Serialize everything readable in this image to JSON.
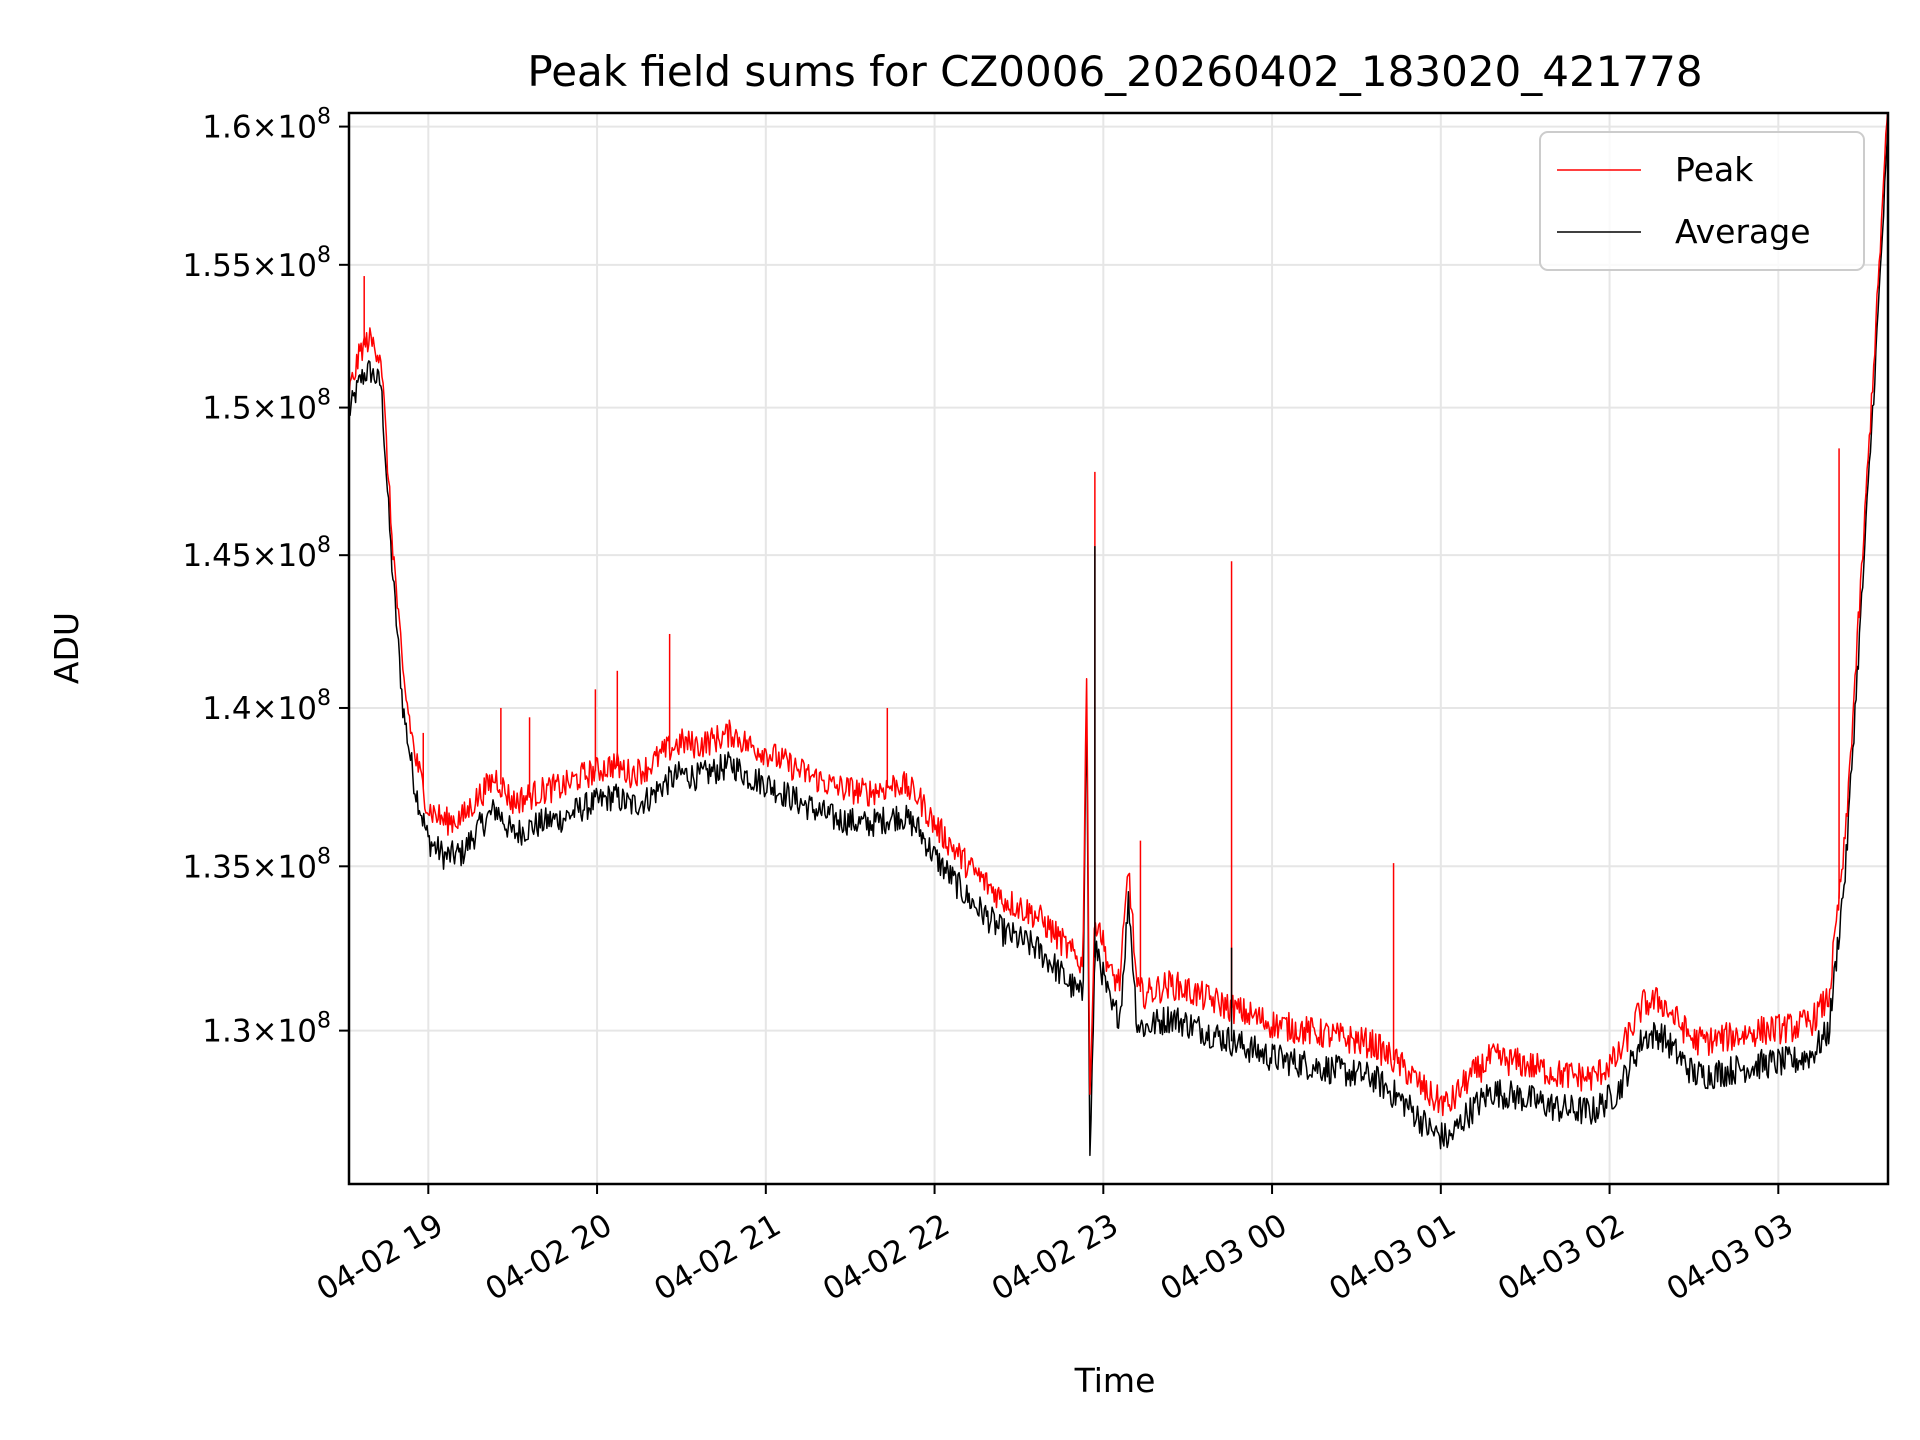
{
  "chart_data": {
    "type": "line",
    "title": "Peak field sums for CZ0006_20260402_183020_421778",
    "xlabel": "Time",
    "ylabel": "ADU",
    "x_range_hours": [
      18.53,
      27.65
    ],
    "ylim": [
      125500000,
      160500000
    ],
    "y_scale": "log",
    "grid": true,
    "legend_position": "top-right",
    "x_ticks": [
      {
        "hour": 19,
        "label": "04-02 19"
      },
      {
        "hour": 20,
        "label": "04-02 20"
      },
      {
        "hour": 21,
        "label": "04-02 21"
      },
      {
        "hour": 22,
        "label": "04-02 22"
      },
      {
        "hour": 23,
        "label": "04-02 23"
      },
      {
        "hour": 24,
        "label": "04-03 00"
      },
      {
        "hour": 25,
        "label": "04-03 01"
      },
      {
        "hour": 26,
        "label": "04-03 02"
      },
      {
        "hour": 27,
        "label": "04-03 03"
      }
    ],
    "y_ticks": [
      {
        "value": 130000000,
        "mantissa": "1.3",
        "exponent": "8"
      },
      {
        "value": 135000000,
        "mantissa": "1.35",
        "exponent": "8"
      },
      {
        "value": 140000000,
        "mantissa": "1.4",
        "exponent": "8"
      },
      {
        "value": 145000000,
        "mantissa": "1.45",
        "exponent": "8"
      },
      {
        "value": 150000000,
        "mantissa": "1.5",
        "exponent": "8"
      },
      {
        "value": 155000000,
        "mantissa": "1.55",
        "exponent": "8"
      },
      {
        "value": 160000000,
        "mantissa": "1.6",
        "exponent": "8"
      }
    ],
    "series": [
      {
        "name": "Peak",
        "color": "#ff0000",
        "x": [
          18.53,
          18.6,
          18.65,
          18.72,
          18.78,
          18.85,
          18.92,
          19.0,
          19.1,
          19.2,
          19.3,
          19.4,
          19.5,
          19.6,
          19.7,
          19.8,
          19.9,
          20.0,
          20.1,
          20.2,
          20.3,
          20.4,
          20.5,
          20.6,
          20.7,
          20.8,
          20.9,
          21.0,
          21.2,
          21.4,
          21.6,
          21.8,
          21.9,
          22.0,
          22.2,
          22.4,
          22.6,
          22.7,
          22.8,
          22.88,
          22.9,
          22.92,
          22.95,
          22.97,
          23.0,
          23.05,
          23.1,
          23.15,
          23.2,
          23.25,
          23.3,
          23.4,
          23.6,
          23.8,
          24.0,
          24.2,
          24.4,
          24.6,
          24.8,
          24.95,
          25.05,
          25.15,
          25.3,
          25.5,
          25.7,
          25.9,
          26.05,
          26.2,
          26.3,
          26.4,
          26.5,
          26.6,
          26.7,
          26.9,
          27.1,
          27.2,
          27.3,
          27.4,
          27.5,
          27.58,
          27.65
        ],
        "y": [
          150500000,
          152000000,
          152400000,
          151800000,
          146000000,
          141000000,
          138500000,
          136800000,
          136400000,
          136500000,
          137200000,
          137800000,
          137000000,
          137200000,
          137400000,
          137500000,
          137800000,
          138000000,
          138200000,
          137900000,
          138100000,
          138600000,
          138900000,
          138800000,
          139000000,
          139200000,
          138800000,
          138600000,
          138000000,
          137500000,
          137300000,
          137600000,
          137200000,
          136300000,
          135000000,
          134000000,
          133500000,
          133000000,
          132400000,
          132000000,
          141800000,
          128000000,
          133200000,
          133400000,
          132600000,
          131600000,
          131500000,
          135000000,
          131200000,
          131100000,
          131200000,
          131400000,
          131000000,
          130600000,
          130200000,
          130000000,
          129800000,
          129600000,
          128800000,
          128000000,
          127800000,
          128500000,
          129200000,
          129000000,
          128700000,
          128600000,
          129200000,
          130800000,
          130900000,
          130300000,
          129700000,
          129700000,
          129800000,
          130000000,
          130100000,
          130300000,
          131000000,
          136000000,
          145000000,
          153000000,
          160800000
        ]
      },
      {
        "name": "Average",
        "color": "#000000",
        "x": [
          18.53,
          18.6,
          18.65,
          18.72,
          18.78,
          18.85,
          18.92,
          19.0,
          19.1,
          19.2,
          19.3,
          19.4,
          19.5,
          19.6,
          19.7,
          19.8,
          19.9,
          20.0,
          20.1,
          20.2,
          20.3,
          20.4,
          20.5,
          20.6,
          20.7,
          20.8,
          20.9,
          21.0,
          21.2,
          21.4,
          21.6,
          21.8,
          21.9,
          22.0,
          22.2,
          22.4,
          22.6,
          22.7,
          22.8,
          22.88,
          22.9,
          22.92,
          22.95,
          22.97,
          23.0,
          23.05,
          23.1,
          23.15,
          23.2,
          23.25,
          23.3,
          23.4,
          23.6,
          23.8,
          24.0,
          24.2,
          24.4,
          24.6,
          24.8,
          24.95,
          25.05,
          25.15,
          25.3,
          25.5,
          25.7,
          25.9,
          26.05,
          26.2,
          26.3,
          26.4,
          26.5,
          26.6,
          26.7,
          26.9,
          27.1,
          27.2,
          27.3,
          27.4,
          27.5,
          27.58,
          27.65
        ],
        "y": [
          149800000,
          151000000,
          151300000,
          150800000,
          145000000,
          140000000,
          137500000,
          135800000,
          135300000,
          135400000,
          136200000,
          136800000,
          136000000,
          136200000,
          136400000,
          136500000,
          136800000,
          137000000,
          137200000,
          136900000,
          137100000,
          137600000,
          137900000,
          137800000,
          138000000,
          138200000,
          137800000,
          137600000,
          137000000,
          136500000,
          136300000,
          136600000,
          136200000,
          135300000,
          134000000,
          133000000,
          132500000,
          132000000,
          131400000,
          131000000,
          140800000,
          126000000,
          132200000,
          132400000,
          131600000,
          130600000,
          130500000,
          134000000,
          130200000,
          130100000,
          130200000,
          130400000,
          130000000,
          129600000,
          129200000,
          129000000,
          128800000,
          128600000,
          127800000,
          127000000,
          126800000,
          127500000,
          128200000,
          128000000,
          127700000,
          127600000,
          128200000,
          129800000,
          129900000,
          129300000,
          128700000,
          128700000,
          128800000,
          129000000,
          129100000,
          129300000,
          130000000,
          135000000,
          144000000,
          152000000,
          159800000
        ]
      }
    ],
    "spikes": [
      {
        "series": "Peak",
        "hour": 18.62,
        "value": 154600000
      },
      {
        "series": "Peak",
        "hour": 18.97,
        "value": 139200000
      },
      {
        "series": "Peak",
        "hour": 19.43,
        "value": 140000000
      },
      {
        "series": "Peak",
        "hour": 19.6,
        "value": 139700000
      },
      {
        "series": "Peak",
        "hour": 19.99,
        "value": 140600000
      },
      {
        "series": "Peak",
        "hour": 20.12,
        "value": 141200000
      },
      {
        "series": "Peak",
        "hour": 20.43,
        "value": 142400000
      },
      {
        "series": "Peak",
        "hour": 21.72,
        "value": 140000000
      },
      {
        "series": "Peak",
        "hour": 22.95,
        "value": 147800000
      },
      {
        "series": "Peak",
        "hour": 23.22,
        "value": 135800000
      },
      {
        "series": "Peak",
        "hour": 23.76,
        "value": 144800000
      },
      {
        "series": "Peak",
        "hour": 24.72,
        "value": 135100000
      },
      {
        "series": "Peak",
        "hour": 27.36,
        "value": 148600000
      },
      {
        "series": "Average",
        "hour": 22.95,
        "value": 145300000
      },
      {
        "series": "Average",
        "hour": 23.76,
        "value": 132500000
      }
    ]
  }
}
